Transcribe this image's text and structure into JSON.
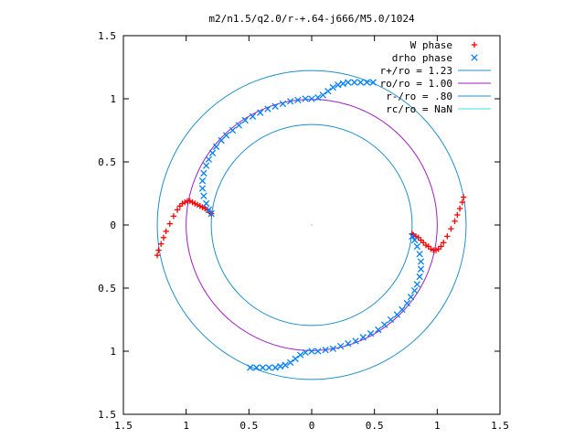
{
  "chart_data": {
    "type": "scatter",
    "title": "m2/n1.5/q2.0/r-+.64-j666/M5.0/1024",
    "xlim": [
      -1.5,
      1.5
    ],
    "ylim": [
      -1.5,
      1.5
    ],
    "x_ticks": [
      "1.5",
      "1",
      "0.5",
      "0",
      "0.5",
      "1",
      "1.5"
    ],
    "y_ticks": [
      "1.5",
      "1",
      "0.5",
      "0",
      "0.5",
      "1",
      "1.5"
    ],
    "grid": false,
    "legend_position": "top-right",
    "series": [
      {
        "name": "W phase",
        "kind": "points",
        "marker": "plus",
        "color": "#ff0000",
        "x": [
          -1.23,
          -1.22,
          -1.2,
          -1.18,
          -1.16,
          -1.13,
          -1.1,
          -1.07,
          -1.05,
          -1.03,
          -1.01,
          -0.99,
          -0.97,
          -0.95,
          -0.93,
          -0.91,
          -0.89,
          -0.87,
          -0.85,
          -0.83,
          -0.81,
          -0.8,
          1.21,
          1.2,
          1.18,
          1.16,
          1.14,
          1.11,
          1.08,
          1.05,
          1.03,
          1.01,
          0.99,
          0.97,
          0.95,
          0.93,
          0.91,
          0.89,
          0.87,
          0.85,
          0.83,
          0.81,
          0.8
        ],
        "y": [
          -0.24,
          -0.2,
          -0.15,
          -0.1,
          -0.05,
          0.01,
          0.07,
          0.12,
          0.15,
          0.17,
          0.18,
          0.19,
          0.19,
          0.18,
          0.17,
          0.16,
          0.15,
          0.14,
          0.13,
          0.12,
          0.1,
          0.09,
          0.22,
          0.18,
          0.13,
          0.08,
          0.03,
          -0.03,
          -0.09,
          -0.14,
          -0.17,
          -0.19,
          -0.2,
          -0.2,
          -0.19,
          -0.17,
          -0.16,
          -0.14,
          -0.12,
          -0.1,
          -0.09,
          -0.08,
          -0.07
        ]
      },
      {
        "name": "drho phase",
        "kind": "points",
        "marker": "cross",
        "color": "#0080ff",
        "x": [
          -0.8,
          -0.82,
          -0.84,
          -0.86,
          -0.87,
          -0.87,
          -0.86,
          -0.84,
          -0.82,
          -0.79,
          -0.76,
          -0.72,
          -0.68,
          -0.63,
          -0.58,
          -0.53,
          -0.47,
          -0.41,
          -0.35,
          -0.29,
          -0.23,
          -0.17,
          -0.11,
          -0.05,
          0.0,
          0.05,
          0.09,
          0.13,
          0.17,
          0.21,
          0.25,
          0.29,
          0.34,
          0.39,
          0.44,
          0.49,
          0.8,
          0.82,
          0.84,
          0.86,
          0.87,
          0.87,
          0.86,
          0.84,
          0.82,
          0.79,
          0.76,
          0.72,
          0.68,
          0.63,
          0.58,
          0.53,
          0.47,
          0.41,
          0.35,
          0.29,
          0.23,
          0.17,
          0.11,
          0.05,
          0.0,
          -0.05,
          -0.09,
          -0.13,
          -0.17,
          -0.21,
          -0.25,
          -0.29,
          -0.34,
          -0.39,
          -0.44,
          -0.49
        ],
        "y": [
          0.09,
          0.12,
          0.17,
          0.23,
          0.29,
          0.35,
          0.41,
          0.47,
          0.52,
          0.57,
          0.62,
          0.67,
          0.71,
          0.75,
          0.79,
          0.83,
          0.86,
          0.89,
          0.92,
          0.94,
          0.96,
          0.98,
          0.99,
          1.0,
          1.0,
          1.01,
          1.03,
          1.06,
          1.09,
          1.11,
          1.12,
          1.13,
          1.13,
          1.13,
          1.13,
          1.13,
          -0.09,
          -0.12,
          -0.17,
          -0.23,
          -0.29,
          -0.35,
          -0.41,
          -0.47,
          -0.52,
          -0.57,
          -0.62,
          -0.67,
          -0.71,
          -0.75,
          -0.79,
          -0.83,
          -0.86,
          -0.89,
          -0.92,
          -0.94,
          -0.96,
          -0.98,
          -0.99,
          -1.0,
          -1.0,
          -1.01,
          -1.03,
          -1.06,
          -1.09,
          -1.11,
          -1.12,
          -1.13,
          -1.13,
          -1.13,
          -1.13,
          -1.13
        ]
      },
      {
        "name": "r+/ro = 1.23",
        "kind": "circle",
        "radius": 1.23,
        "color": "#1e90c8"
      },
      {
        "name": "ro/ro = 1.00",
        "kind": "circle",
        "radius": 1.0,
        "color": "#a020c0"
      },
      {
        "name": "r-/ro = .80",
        "kind": "circle",
        "radius": 0.8,
        "color": "#1e90c8"
      },
      {
        "name": "rc/ro = NaN",
        "kind": "circle",
        "radius": null,
        "color": "#40e0f0"
      }
    ]
  }
}
